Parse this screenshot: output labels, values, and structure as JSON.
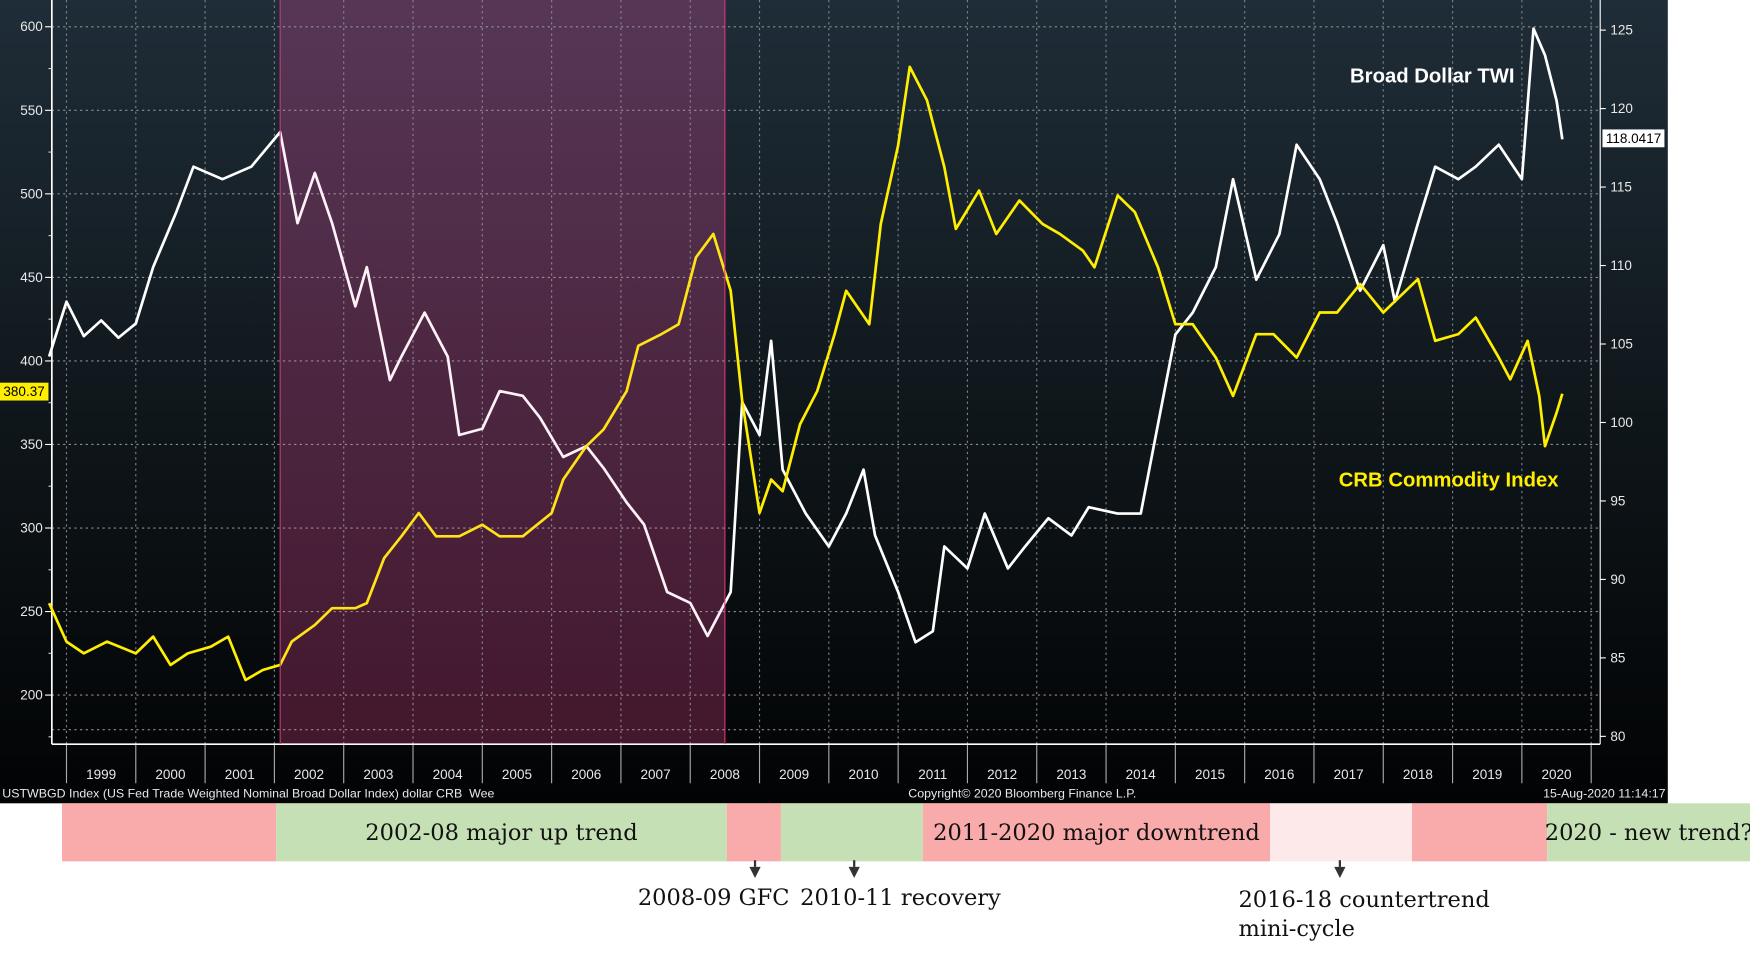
{
  "chart_data": {
    "type": "line",
    "x_axis": {
      "ticks": [
        "1999",
        "2000",
        "2001",
        "2002",
        "2003",
        "2004",
        "2005",
        "2006",
        "2007",
        "2008",
        "2009",
        "2010",
        "2011",
        "2012",
        "2013",
        "2014",
        "2015",
        "2016",
        "2017",
        "2018",
        "2019",
        "2020"
      ]
    },
    "y_left": {
      "ticks": [
        200,
        250,
        300,
        350,
        400,
        450,
        500,
        550,
        600
      ],
      "range": [
        175,
        620
      ]
    },
    "y_right": {
      "ticks": [
        80,
        85,
        90,
        95,
        100,
        105,
        110,
        115,
        120,
        125
      ],
      "range": [
        80,
        126
      ]
    },
    "grid": true,
    "shaded_period": {
      "start": "2002-02",
      "end": "2008-07",
      "color": "#3d2a45"
    },
    "series": [
      {
        "name": "Broad Dollar TWI",
        "axis": "right",
        "color": "#ffffff",
        "last_value": "118.0417",
        "points": [
          [
            "1998-10",
            104.2
          ],
          [
            "1999-01",
            107.7
          ],
          [
            "1999-04",
            105.5
          ],
          [
            "1999-07",
            106.5
          ],
          [
            "1999-10",
            105.4
          ],
          [
            "2000-01",
            106.3
          ],
          [
            "2000-04",
            109.9
          ],
          [
            "2000-08",
            113.4
          ],
          [
            "2000-11",
            116.3
          ],
          [
            "2001-04",
            115.5
          ],
          [
            "2001-09",
            116.3
          ],
          [
            "2002-02",
            118.5
          ],
          [
            "2002-05",
            112.7
          ],
          [
            "2002-08",
            115.9
          ],
          [
            "2002-11",
            112.7
          ],
          [
            "2003-03",
            107.4
          ],
          [
            "2003-05",
            109.9
          ],
          [
            "2003-09",
            102.7
          ],
          [
            "2003-11",
            104.2
          ],
          [
            "2004-03",
            107
          ],
          [
            "2004-07",
            104.2
          ],
          [
            "2004-09",
            99.2
          ],
          [
            "2005-01",
            99.6
          ],
          [
            "2005-04",
            102
          ],
          [
            "2005-08",
            101.7
          ],
          [
            "2005-11",
            100.3
          ],
          [
            "2006-03",
            97.8
          ],
          [
            "2006-07",
            98.5
          ],
          [
            "2006-10",
            97.1
          ],
          [
            "2007-02",
            94.9
          ],
          [
            "2007-05",
            93.5
          ],
          [
            "2007-09",
            89.2
          ],
          [
            "2008-01",
            88.5
          ],
          [
            "2008-04",
            86.4
          ],
          [
            "2008-08",
            89.2
          ],
          [
            "2008-10",
            101.3
          ],
          [
            "2009-01",
            99.2
          ],
          [
            "2009-03",
            105.2
          ],
          [
            "2009-05",
            97
          ],
          [
            "2009-09",
            94.2
          ],
          [
            "2010-01",
            92.1
          ],
          [
            "2010-04",
            94.2
          ],
          [
            "2010-07",
            97
          ],
          [
            "2010-09",
            92.8
          ],
          [
            "2011-01",
            89.2
          ],
          [
            "2011-04",
            86
          ],
          [
            "2011-07",
            86.7
          ],
          [
            "2011-09",
            92.1
          ],
          [
            "2012-01",
            90.7
          ],
          [
            "2012-04",
            94.2
          ],
          [
            "2012-08",
            90.7
          ],
          [
            "2012-11",
            92.1
          ],
          [
            "2013-03",
            93.9
          ],
          [
            "2013-07",
            92.8
          ],
          [
            "2013-10",
            94.6
          ],
          [
            "2014-03",
            94.2
          ],
          [
            "2014-07",
            94.2
          ],
          [
            "2014-10",
            99.9
          ],
          [
            "2015-01",
            105.6
          ],
          [
            "2015-04",
            107
          ],
          [
            "2015-08",
            109.9
          ],
          [
            "2015-11",
            115.5
          ],
          [
            "2016-03",
            109.1
          ],
          [
            "2016-07",
            112
          ],
          [
            "2016-10",
            117.7
          ],
          [
            "2017-02",
            115.5
          ],
          [
            "2017-05",
            112.7
          ],
          [
            "2017-09",
            108.4
          ],
          [
            "2018-01",
            111.3
          ],
          [
            "2018-03",
            107.7
          ],
          [
            "2018-07",
            112.7
          ],
          [
            "2018-10",
            116.3
          ],
          [
            "2019-02",
            115.5
          ],
          [
            "2019-05",
            116.3
          ],
          [
            "2019-09",
            117.7
          ],
          [
            "2020-01",
            115.5
          ],
          [
            "2020-03",
            125.1
          ],
          [
            "2020-05",
            123.4
          ],
          [
            "2020-07",
            120.5
          ],
          [
            "2020-08",
            118.04
          ]
        ]
      },
      {
        "name": "CRB Commodity Index",
        "axis": "left",
        "color": "#ffee00",
        "last_value": "380.37",
        "points": [
          [
            "1998-10",
            255
          ],
          [
            "1999-01",
            232
          ],
          [
            "1999-04",
            225
          ],
          [
            "1999-08",
            232
          ],
          [
            "2000-01",
            225
          ],
          [
            "2000-04",
            235
          ],
          [
            "2000-07",
            218
          ],
          [
            "2000-10",
            225
          ],
          [
            "2001-02",
            229
          ],
          [
            "2001-05",
            235
          ],
          [
            "2001-08",
            209
          ],
          [
            "2001-11",
            215
          ],
          [
            "2002-02",
            218
          ],
          [
            "2002-04",
            232
          ],
          [
            "2002-08",
            242
          ],
          [
            "2002-11",
            252
          ],
          [
            "2003-03",
            252
          ],
          [
            "2003-05",
            255
          ],
          [
            "2003-08",
            282
          ],
          [
            "2003-11",
            295
          ],
          [
            "2004-02",
            309
          ],
          [
            "2004-05",
            295
          ],
          [
            "2004-09",
            295
          ],
          [
            "2005-01",
            302
          ],
          [
            "2005-04",
            295
          ],
          [
            "2005-08",
            295
          ],
          [
            "2006-01",
            309
          ],
          [
            "2006-03",
            329
          ],
          [
            "2006-07",
            349
          ],
          [
            "2006-10",
            359
          ],
          [
            "2007-02",
            382
          ],
          [
            "2007-04",
            409
          ],
          [
            "2007-08",
            416
          ],
          [
            "2007-11",
            422
          ],
          [
            "2008-02",
            462
          ],
          [
            "2008-05",
            476
          ],
          [
            "2008-08",
            442
          ],
          [
            "2008-10",
            376
          ],
          [
            "2009-01",
            309
          ],
          [
            "2009-03",
            329
          ],
          [
            "2009-05",
            322
          ],
          [
            "2009-08",
            362
          ],
          [
            "2009-11",
            382
          ],
          [
            "2010-02",
            416
          ],
          [
            "2010-04",
            442
          ],
          [
            "2010-08",
            422
          ],
          [
            "2010-10",
            482
          ],
          [
            "2011-01",
            529
          ],
          [
            "2011-03",
            576
          ],
          [
            "2011-06",
            556
          ],
          [
            "2011-09",
            516
          ],
          [
            "2011-11",
            479
          ],
          [
            "2012-03",
            502
          ],
          [
            "2012-06",
            476
          ],
          [
            "2012-10",
            496
          ],
          [
            "2013-02",
            482
          ],
          [
            "2013-05",
            476
          ],
          [
            "2013-09",
            466
          ],
          [
            "2013-11",
            456
          ],
          [
            "2014-03",
            499
          ],
          [
            "2014-06",
            489
          ],
          [
            "2014-10",
            456
          ],
          [
            "2015-01",
            422
          ],
          [
            "2015-04",
            422
          ],
          [
            "2015-08",
            402
          ],
          [
            "2015-11",
            379
          ],
          [
            "2016-03",
            416
          ],
          [
            "2016-06",
            416
          ],
          [
            "2016-10",
            402
          ],
          [
            "2017-02",
            429
          ],
          [
            "2017-05",
            429
          ],
          [
            "2017-09",
            446
          ],
          [
            "2018-01",
            429
          ],
          [
            "2018-04",
            439
          ],
          [
            "2018-07",
            449
          ],
          [
            "2018-10",
            412
          ],
          [
            "2019-02",
            416
          ],
          [
            "2019-05",
            426
          ],
          [
            "2019-09",
            402
          ],
          [
            "2019-11",
            389
          ],
          [
            "2020-02",
            412
          ],
          [
            "2020-04",
            379
          ],
          [
            "2020-05",
            349
          ],
          [
            "2020-07",
            369
          ],
          [
            "2020-08",
            380.37
          ]
        ]
      }
    ]
  },
  "labels": {
    "twi": "Broad Dollar TWI",
    "crb": "CRB Commodity Index",
    "twi_last": "118.0417",
    "crb_last": "380.37"
  },
  "footer": {
    "left": "USTWBGD Index (US Fed Trade Weighted Nominal Broad Dollar Index) dollar CRB  Wee",
    "center": "Copyright© 2020 Bloomberg Finance L.P.",
    "right": "15-Aug-2020 11:14:17"
  },
  "bands": [
    {
      "label": "",
      "color": "#f9aaaa"
    },
    {
      "label": "2002-08 major up trend",
      "color": "#c5e0b4"
    },
    {
      "label": "",
      "color": "#f9aaaa"
    },
    {
      "label": "",
      "color": "#c5e0b4"
    },
    {
      "label": "2011-2020 major downtrend",
      "color": "#f9aaaa"
    },
    {
      "label": "",
      "color": "#fde9e9"
    },
    {
      "label": "",
      "color": "#f9aaaa"
    },
    {
      "label": "2020 - new trend?",
      "color": "#c5e0b4"
    }
  ],
  "notes": {
    "gfc": "2008-09 GFC",
    "recovery": "2010-11 recovery",
    "countertrend_1": "2016-18 countertrend",
    "countertrend_2": "mini-cycle"
  }
}
